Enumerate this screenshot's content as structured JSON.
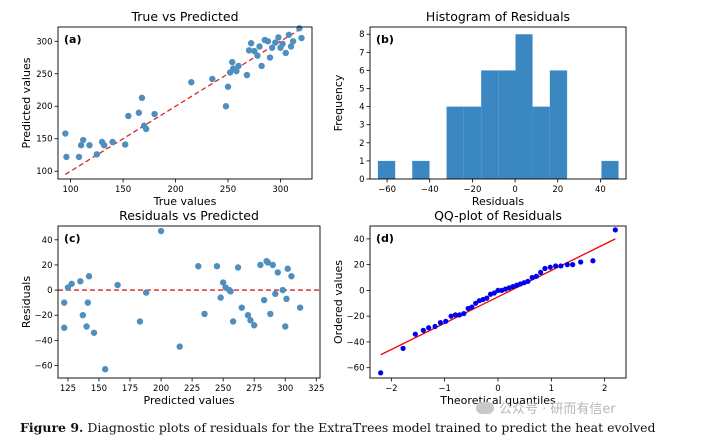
{
  "caption": {
    "label": "Figure 9.",
    "text": "Diagnostic plots of residuals for the ExtraTrees model trained to predict the heat evolved"
  },
  "watermark": {
    "text": "公众号 · 研而有信er",
    "icon": "chat-bubble-icon"
  },
  "chart_data": [
    {
      "panel": "(a)",
      "type": "scatter",
      "title": "True vs Predicted",
      "xlabel": "True values",
      "ylabel": "Predicted values",
      "xlim": [
        88,
        330
      ],
      "ylim": [
        88,
        322
      ],
      "xticks": [
        100,
        150,
        200,
        250,
        300
      ],
      "yticks": [
        100,
        150,
        200,
        250,
        300
      ],
      "point_color": "#4f8fbf",
      "reference_line": {
        "from": [
          95,
          95
        ],
        "to": [
          320,
          320
        ],
        "color": "#d62728",
        "style": "dashed"
      },
      "x": [
        95,
        96,
        108,
        110,
        112,
        118,
        125,
        130,
        132,
        140,
        152,
        155,
        165,
        168,
        170,
        172,
        180,
        215,
        235,
        248,
        250,
        252,
        254,
        255,
        258,
        260,
        268,
        270,
        272,
        275,
        278,
        280,
        282,
        285,
        288,
        290,
        292,
        295,
        298,
        300,
        302,
        305,
        308,
        310,
        312,
        318,
        320
      ],
      "y": [
        158,
        122,
        122,
        140,
        148,
        140,
        126,
        145,
        140,
        145,
        141,
        185,
        190,
        213,
        170,
        165,
        188,
        237,
        242,
        200,
        230,
        252,
        268,
        258,
        254,
        262,
        248,
        286,
        297,
        285,
        278,
        292,
        262,
        302,
        300,
        275,
        290,
        298,
        306,
        290,
        296,
        282,
        310,
        292,
        300,
        320,
        305
      ]
    },
    {
      "panel": "(b)",
      "type": "bar",
      "title": "Histogram of Residuals",
      "xlabel": "Residuals",
      "ylabel": "Frequency",
      "xlim": [
        -68,
        52
      ],
      "ylim": [
        0,
        8.4
      ],
      "xticks": [
        -60,
        -40,
        -20,
        0,
        20,
        40
      ],
      "yticks": [
        0,
        1,
        2,
        3,
        4,
        5,
        6,
        7,
        8
      ],
      "bar_color": "#3a87c2",
      "bins": [
        {
          "from": -64.3,
          "to": -56.2,
          "count": 1
        },
        {
          "from": -56.2,
          "to": -48.2,
          "count": 0
        },
        {
          "from": -48.2,
          "to": -40.1,
          "count": 1
        },
        {
          "from": -40.1,
          "to": -32.1,
          "count": 0
        },
        {
          "from": -32.1,
          "to": -24.0,
          "count": 4
        },
        {
          "from": -24.0,
          "to": -15.9,
          "count": 4
        },
        {
          "from": -15.9,
          "to": -7.9,
          "count": 6
        },
        {
          "from": -7.9,
          "to": 0.2,
          "count": 6
        },
        {
          "from": 0.2,
          "to": 8.2,
          "count": 8
        },
        {
          "from": 8.2,
          "to": 16.3,
          "count": 4
        },
        {
          "from": 16.3,
          "to": 24.4,
          "count": 6
        },
        {
          "from": 24.4,
          "to": 32.4,
          "count": 0
        },
        {
          "from": 32.4,
          "to": 40.5,
          "count": 0
        },
        {
          "from": 40.5,
          "to": 48.5,
          "count": 1
        }
      ]
    },
    {
      "panel": "(c)",
      "type": "scatter",
      "title": "Residuals vs Predicted",
      "xlabel": "Predicted values",
      "ylabel": "Residuals",
      "xlim": [
        117,
        328
      ],
      "ylim": [
        -70,
        51
      ],
      "xticks": [
        125,
        150,
        175,
        200,
        225,
        250,
        275,
        300,
        325
      ],
      "yticks": [
        -60,
        -40,
        -20,
        0,
        20,
        40
      ],
      "point_color": "#4f8fbf",
      "reference_line": {
        "y": 0,
        "color": "#d62728",
        "style": "dashed"
      },
      "x": [
        122,
        122,
        125,
        128,
        135,
        137,
        140,
        141,
        142,
        146,
        155,
        165,
        183,
        188,
        200,
        215,
        230,
        235,
        245,
        248,
        250,
        252,
        255,
        256,
        258,
        262,
        265,
        270,
        272,
        275,
        280,
        283,
        285,
        286,
        288,
        290,
        292,
        294,
        298,
        300,
        301,
        302,
        305,
        312
      ],
      "y": [
        -30,
        -10,
        2,
        5,
        7,
        -20,
        -29,
        -10,
        11,
        -34,
        -63,
        4,
        -25,
        -2,
        47,
        -45,
        19,
        -19,
        19,
        -6,
        6,
        2,
        0,
        -1,
        -25,
        18,
        -14,
        -20,
        -24,
        -28,
        20,
        -8,
        23,
        22,
        -19,
        20,
        -3,
        14,
        0,
        -29,
        -7,
        17,
        11,
        -14
      ]
    },
    {
      "panel": "(d)",
      "type": "scatter",
      "title": "QQ-plot of Residuals",
      "xlabel": "Theoretical quantiles",
      "ylabel": "Ordered values",
      "xlim": [
        -2.4,
        2.4
      ],
      "ylim": [
        -68,
        50
      ],
      "xticks": [
        -2,
        -1,
        0,
        1,
        2
      ],
      "yticks": [
        -60,
        -40,
        -20,
        0,
        20,
        40
      ],
      "point_color": "#0000ee",
      "reference_line": {
        "from": [
          -2.2,
          -50
        ],
        "to": [
          2.2,
          40
        ],
        "color": "#ee0000",
        "style": "solid"
      },
      "x": [
        -2.2,
        -1.78,
        -1.55,
        -1.4,
        -1.3,
        -1.18,
        -1.08,
        -0.98,
        -0.88,
        -0.8,
        -0.72,
        -0.64,
        -0.56,
        -0.49,
        -0.42,
        -0.35,
        -0.28,
        -0.21,
        -0.14,
        -0.07,
        0.0,
        0.07,
        0.14,
        0.21,
        0.28,
        0.35,
        0.42,
        0.49,
        0.56,
        0.64,
        0.72,
        0.8,
        0.88,
        0.98,
        1.08,
        1.18,
        1.3,
        1.4,
        1.55,
        1.78,
        2.2
      ],
      "y": [
        -64,
        -45,
        -34,
        -31,
        -29,
        -28,
        -25,
        -24,
        -20,
        -19,
        -19,
        -18,
        -14,
        -13,
        -10,
        -8,
        -7,
        -6,
        -3,
        -2,
        0,
        0,
        1,
        2,
        3,
        4,
        5,
        6,
        7,
        10,
        11,
        14,
        17,
        18,
        19,
        19,
        20,
        20,
        22,
        23,
        47
      ]
    }
  ]
}
